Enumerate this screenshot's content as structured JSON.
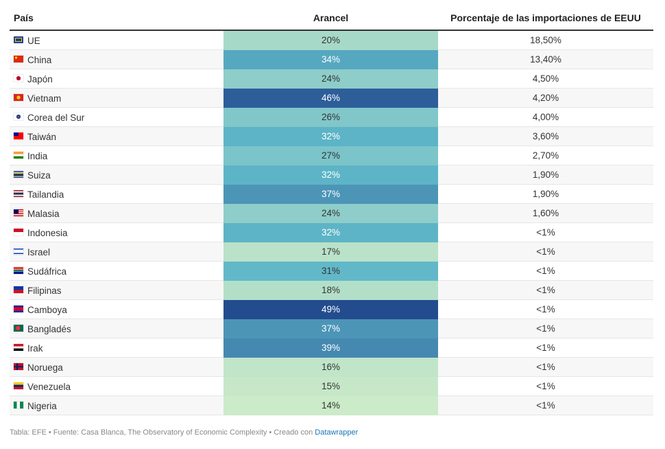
{
  "header": {
    "country": "País",
    "tariff": "Arancel",
    "share": "Porcentaje de las importaciones de EEUU"
  },
  "chart_data": {
    "type": "table",
    "columns": [
      "País",
      "Arancel",
      "Porcentaje de las importaciones de EEUU"
    ],
    "rows": [
      {
        "country": "UE",
        "tariff_label": "20%",
        "tariff": 20,
        "share": "18,50%",
        "flag": "eu-flag-icon"
      },
      {
        "country": "China",
        "tariff_label": "34%",
        "tariff": 34,
        "share": "13,40%",
        "flag": "china-flag-icon"
      },
      {
        "country": "Japón",
        "tariff_label": "24%",
        "tariff": 24,
        "share": "4,50%",
        "flag": "japan-flag-icon"
      },
      {
        "country": "Vietnam",
        "tariff_label": "46%",
        "tariff": 46,
        "share": "4,20%",
        "flag": "vietnam-flag-icon"
      },
      {
        "country": "Corea del Sur",
        "tariff_label": "26%",
        "tariff": 26,
        "share": "4,00%",
        "flag": "south-korea-flag-icon"
      },
      {
        "country": "Taiwán",
        "tariff_label": "32%",
        "tariff": 32,
        "share": "3,60%",
        "flag": "taiwan-flag-icon"
      },
      {
        "country": "India",
        "tariff_label": "27%",
        "tariff": 27,
        "share": "2,70%",
        "flag": "india-flag-icon"
      },
      {
        "country": "Suiza",
        "tariff_label": "32%",
        "tariff": 32,
        "share": "1,90%",
        "flag": "switzerland-flag-icon"
      },
      {
        "country": "Tailandia",
        "tariff_label": "37%",
        "tariff": 37,
        "share": "1,90%",
        "flag": "thailand-flag-icon"
      },
      {
        "country": "Malasia",
        "tariff_label": "24%",
        "tariff": 24,
        "share": "1,60%",
        "flag": "malaysia-flag-icon"
      },
      {
        "country": "Indonesia",
        "tariff_label": "32%",
        "tariff": 32,
        "share": "<1%",
        "flag": "indonesia-flag-icon"
      },
      {
        "country": "Israel",
        "tariff_label": "17%",
        "tariff": 17,
        "share": "<1%",
        "flag": "israel-flag-icon"
      },
      {
        "country": "Sudáfrica",
        "tariff_label": "31%",
        "tariff": 31,
        "share": "<1%",
        "flag": "south-africa-flag-icon"
      },
      {
        "country": "Filipinas",
        "tariff_label": "18%",
        "tariff": 18,
        "share": "<1%",
        "flag": "philippines-flag-icon"
      },
      {
        "country": "Camboya",
        "tariff_label": "49%",
        "tariff": 49,
        "share": "<1%",
        "flag": "cambodia-flag-icon"
      },
      {
        "country": "Bangladés",
        "tariff_label": "37%",
        "tariff": 37,
        "share": "<1%",
        "flag": "bangladesh-flag-icon"
      },
      {
        "country": "Irak",
        "tariff_label": "39%",
        "tariff": 39,
        "share": "<1%",
        "flag": "iraq-flag-icon"
      },
      {
        "country": "Noruega",
        "tariff_label": "16%",
        "tariff": 16,
        "share": "<1%",
        "flag": "norway-flag-icon"
      },
      {
        "country": "Venezuela",
        "tariff_label": "15%",
        "tariff": 15,
        "share": "<1%",
        "flag": "venezuela-flag-icon"
      },
      {
        "country": "Nigeria",
        "tariff_label": "14%",
        "tariff": 14,
        "share": "<1%",
        "flag": "nigeria-flag-icon"
      }
    ],
    "color_scale": {
      "low": "#ccebc9",
      "mid": "#5fb7c9",
      "high": "#234c8f",
      "min": 14,
      "max": 49
    },
    "row_stripe": "#f7f7f7"
  },
  "footer": {
    "text": "Tabla: EFE • Fuente: Casa Blanca, The Observatory of Economic Complexity • Creado con ",
    "link": "Datawrapper"
  }
}
